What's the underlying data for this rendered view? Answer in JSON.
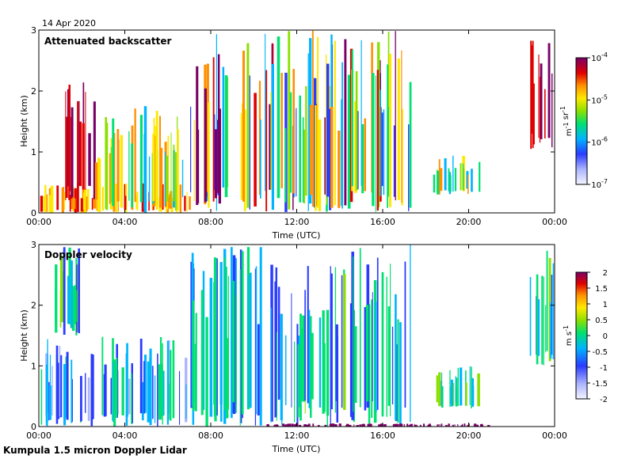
{
  "figure": {
    "date": "14 Apr 2020",
    "instrument": "Kumpula 1.5 micron Doppler Lidar"
  },
  "chart_data": [
    {
      "type": "heatmap",
      "title": "Attenuated backscatter",
      "xlabel": "Time (UTC)",
      "ylabel": "Height (km)",
      "xticks": [
        "00:00",
        "04:00",
        "08:00",
        "12:00",
        "16:00",
        "20:00",
        "00:00"
      ],
      "xlim": [
        0,
        24
      ],
      "ylim": [
        0,
        3
      ],
      "yticks": [
        "0",
        "1",
        "2",
        "3"
      ],
      "colorbar": {
        "scale": "log",
        "range": [
          1e-07,
          0.0001
        ],
        "ticks": [
          {
            "base": "10",
            "exp": "-7"
          },
          {
            "base": "10",
            "exp": "-6"
          },
          {
            "base": "10",
            "exp": "-5"
          },
          {
            "base": "10",
            "exp": "-4"
          }
        ],
        "unit_parts": [
          {
            "t": "m"
          },
          {
            "t": "-1",
            "sup": true
          },
          {
            "t": " sr"
          },
          {
            "t": "-1",
            "sup": true
          }
        ]
      },
      "features": [
        {
          "t0": 0.0,
          "t1": 7.0,
          "h0": 0.0,
          "h1": 0.5,
          "level": "high"
        },
        {
          "t0": 1.2,
          "t1": 2.6,
          "h0": 0.2,
          "h1": 2.2,
          "level": "very high"
        },
        {
          "t0": 2.6,
          "t1": 6.8,
          "h0": 0.0,
          "h1": 1.8,
          "level": "medium"
        },
        {
          "t0": 7.0,
          "t1": 17.3,
          "h0": 0.0,
          "h1": 3.0,
          "level": "mixed"
        },
        {
          "t0": 18.3,
          "t1": 20.5,
          "h0": 0.3,
          "h1": 1.0,
          "level": "medium"
        },
        {
          "t0": 22.8,
          "t1": 24.0,
          "h0": 1.0,
          "h1": 3.0,
          "level": "very high"
        }
      ]
    },
    {
      "type": "heatmap",
      "title": "Doppler velocity",
      "xlabel": "Time (UTC)",
      "ylabel": "Height (km)",
      "xticks": [
        "00:00",
        "04:00",
        "08:00",
        "12:00",
        "16:00",
        "20:00",
        "00:00"
      ],
      "xlim": [
        0,
        24
      ],
      "ylim": [
        0,
        3
      ],
      "yticks": [
        "0",
        "1",
        "2",
        "3"
      ],
      "colorbar": {
        "scale": "linear",
        "range": [
          -2,
          2
        ],
        "ticks": [
          "-2",
          "-1.5",
          "-1",
          "-0.5",
          "0",
          "0.5",
          "1",
          "1.5",
          "2"
        ],
        "unit_parts": [
          {
            "t": "m s"
          },
          {
            "t": "-1",
            "sup": true
          }
        ]
      },
      "features": [
        {
          "t0": 0.0,
          "t1": 7.0,
          "h0": 0.0,
          "h1": 1.5,
          "velocity": -1.0
        },
        {
          "t0": 0.5,
          "t1": 2.5,
          "h0": 1.5,
          "h1": 3.0,
          "velocity": -0.3
        },
        {
          "t0": 7.0,
          "t1": 17.3,
          "h0": 0.0,
          "h1": 3.0,
          "velocity": -0.6
        },
        {
          "t0": 18.3,
          "t1": 20.5,
          "h0": 0.3,
          "h1": 1.0,
          "velocity": 0.0
        },
        {
          "t0": 22.8,
          "t1": 24.0,
          "h0": 1.0,
          "h1": 3.0,
          "velocity": -0.2
        },
        {
          "t0": 10.5,
          "t1": 21.0,
          "h0": 0.0,
          "h1": 0.05,
          "velocity": 2.0
        }
      ]
    }
  ]
}
